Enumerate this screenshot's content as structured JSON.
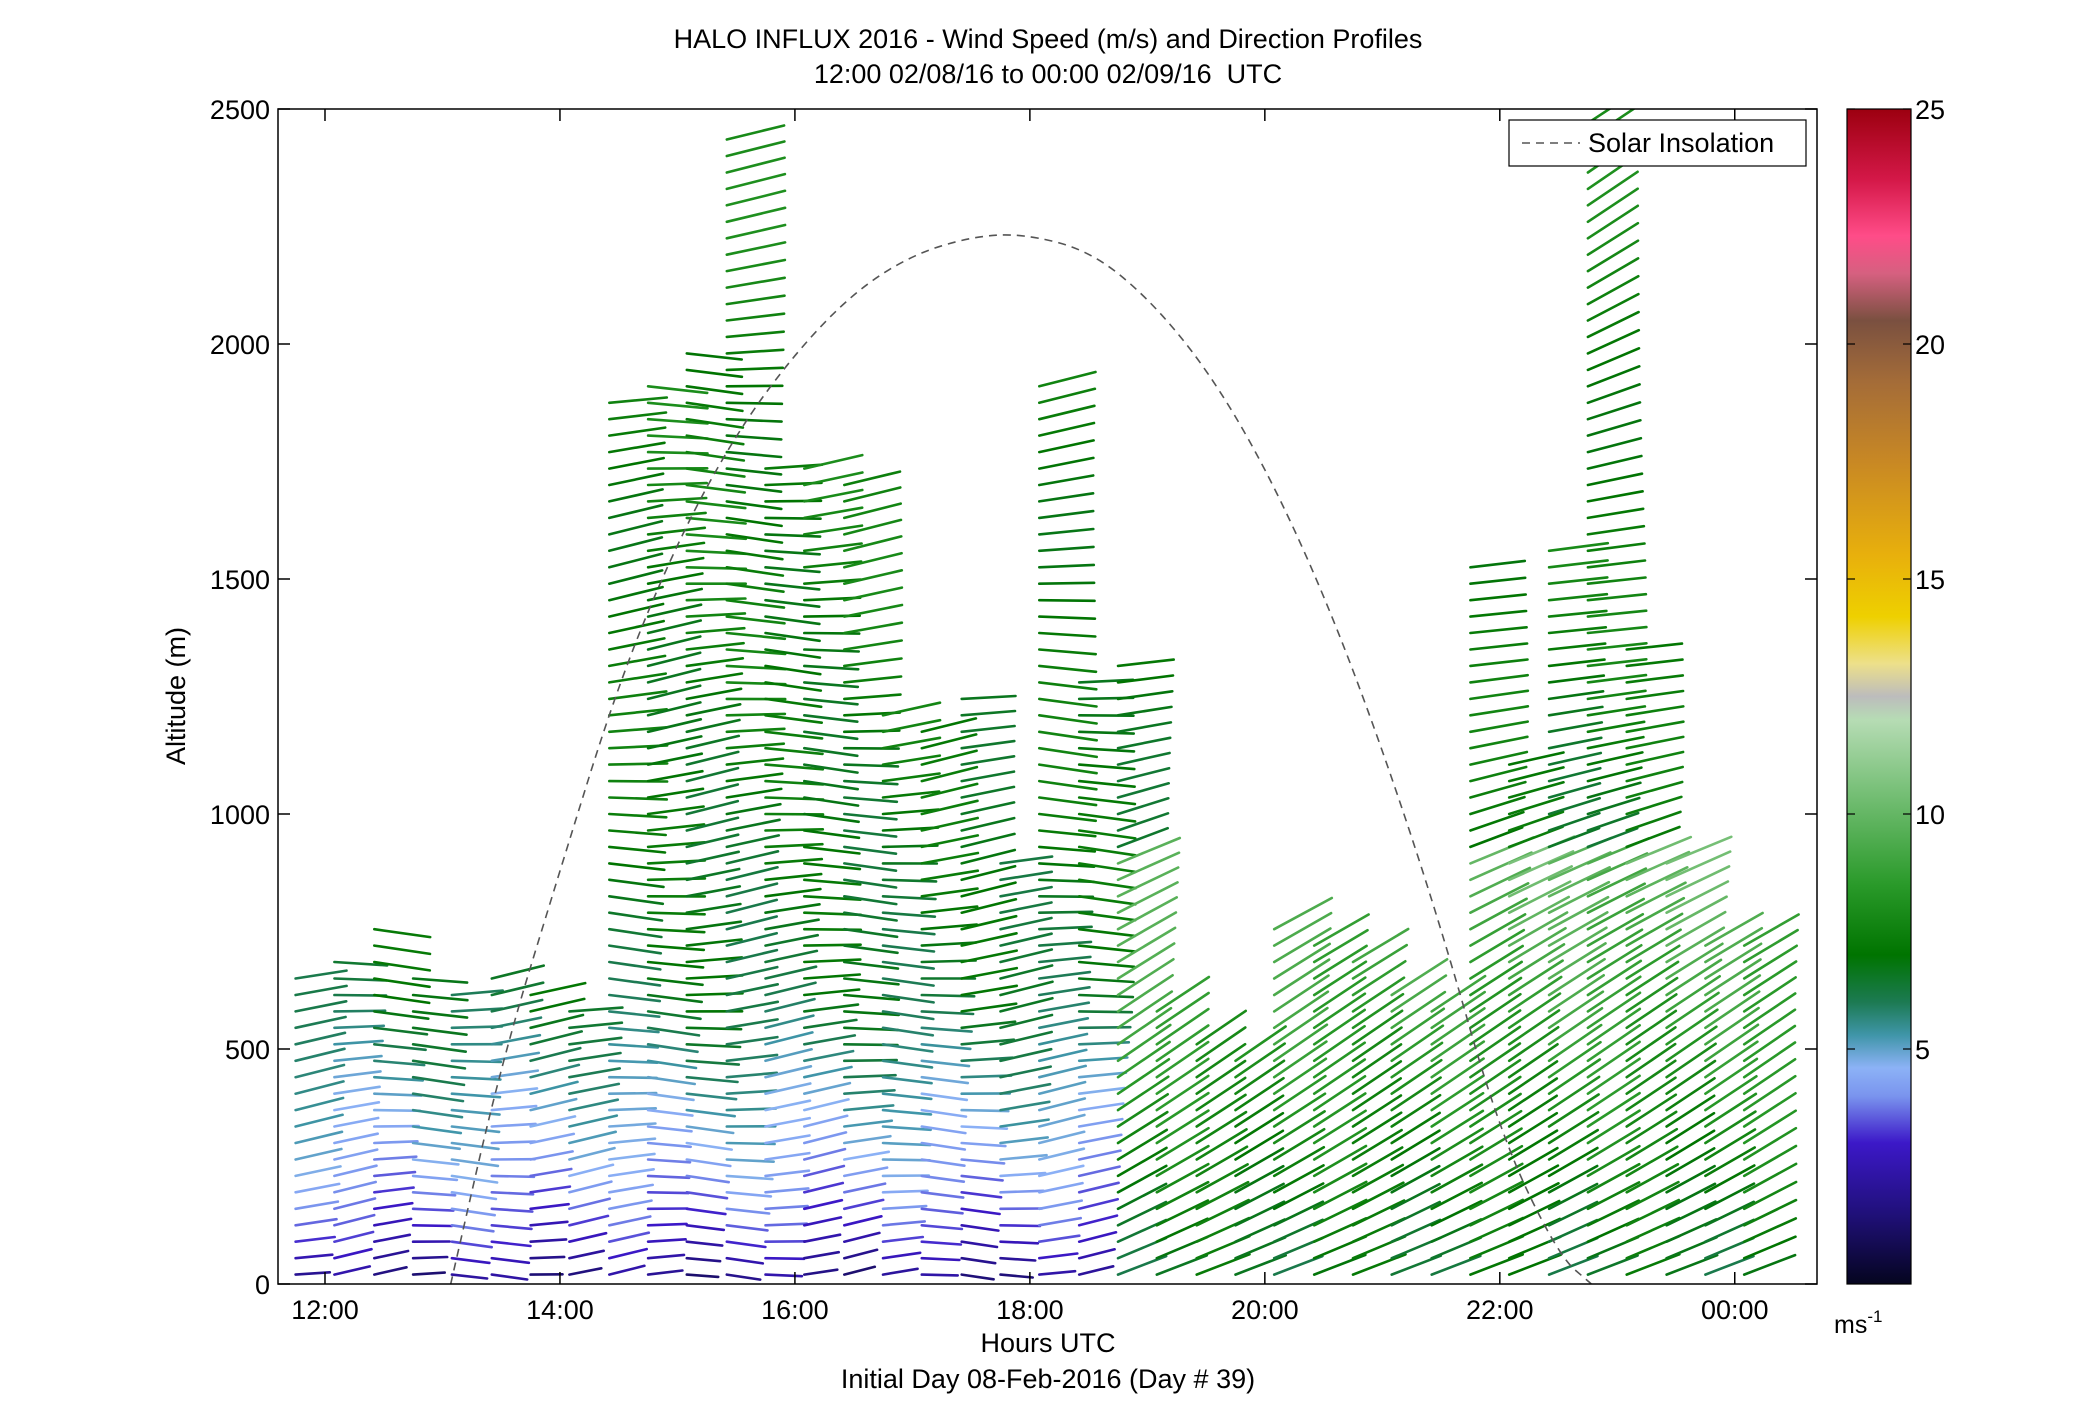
{
  "chart_data": {
    "type": "scatter",
    "title": "HALO INFLUX 2016 - Wind Speed (m/s) and Direction Profiles",
    "subtitle": "12:00 02/08/16 to 00:00 02/09/16  UTC",
    "xlabel": "Hours UTC",
    "x_sublabel": "Initial Day 08-Feb-2016 (Day # 39)",
    "ylabel": "Altitude (m)",
    "xlim": [
      11.6,
      24.7
    ],
    "ylim": [
      0,
      2500
    ],
    "x_ticks": [
      12,
      14,
      16,
      18,
      20,
      22,
      24
    ],
    "x_tick_labels": [
      "12:00",
      "14:00",
      "16:00",
      "18:00",
      "20:00",
      "22:00",
      "00:00"
    ],
    "y_ticks": [
      0,
      500,
      1000,
      1500,
      2000,
      2500
    ],
    "y_tick_labels": [
      "0",
      "500",
      "1000",
      "1500",
      "2000",
      "2500"
    ],
    "grid": false,
    "legend": {
      "position": "top-right",
      "entries": [
        "Solar Insolation"
      ]
    },
    "colorbar": {
      "ticks": [
        5,
        10,
        15,
        20,
        25
      ],
      "tick_labels": [
        "5",
        "10",
        "15",
        "20",
        "25"
      ],
      "unit_label": "ms",
      "unit_exponent": "-1",
      "range": [
        0,
        25
      ],
      "stops": [
        {
          "v": 0,
          "c": "#05051f"
        },
        {
          "v": 1.5,
          "c": "#20107a"
        },
        {
          "v": 3,
          "c": "#3c18c8"
        },
        {
          "v": 4,
          "c": "#7a94ee"
        },
        {
          "v": 4.6,
          "c": "#8cb2f6"
        },
        {
          "v": 5.3,
          "c": "#3f95a8"
        },
        {
          "v": 6,
          "c": "#1c7a52"
        },
        {
          "v": 7,
          "c": "#007400"
        },
        {
          "v": 8.5,
          "c": "#2a9a2a"
        },
        {
          "v": 10.5,
          "c": "#78c078"
        },
        {
          "v": 12,
          "c": "#b6dcb4"
        },
        {
          "v": 12.5,
          "c": "#bcbcbc"
        },
        {
          "v": 13.2,
          "c": "#ede08a"
        },
        {
          "v": 14.2,
          "c": "#eed000"
        },
        {
          "v": 15.5,
          "c": "#e8b00c"
        },
        {
          "v": 17.5,
          "c": "#c88824"
        },
        {
          "v": 19.2,
          "c": "#a46c38"
        },
        {
          "v": 20.5,
          "c": "#7a5040"
        },
        {
          "v": 21.5,
          "c": "#d66080"
        },
        {
          "v": 22.3,
          "c": "#ff4c88"
        },
        {
          "v": 23.5,
          "c": "#d41848"
        },
        {
          "v": 25,
          "c": "#9c0010"
        }
      ]
    },
    "solar_insolation": {
      "style": "dashed",
      "color": "#555555",
      "x": [
        13.07,
        13.5,
        14,
        14.5,
        15,
        15.5,
        16,
        16.5,
        17,
        17.5,
        17.93,
        18.5,
        19,
        19.5,
        20,
        20.5,
        21,
        21.5,
        22,
        22.5,
        22.78
      ],
      "y": [
        0,
        470,
        880,
        1280,
        1580,
        1810,
        1980,
        2110,
        2190,
        2228,
        2235,
        2200,
        2100,
        1950,
        1740,
        1470,
        1140,
        760,
        320,
        60,
        0
      ]
    },
    "wind_profiles": {
      "profile_times": [
        11.75,
        12.08,
        12.42,
        12.75,
        13.08,
        13.42,
        13.75,
        14.08,
        14.42,
        14.75,
        15.08,
        15.42,
        15.75,
        16.08,
        16.42,
        16.75,
        17.08,
        17.42,
        17.75,
        18.08,
        18.42,
        18.75,
        19.08,
        19.42,
        19.75,
        20.08,
        20.42,
        20.75,
        21.08,
        21.42,
        21.75,
        22.08,
        22.42,
        22.75,
        23.08,
        23.42,
        23.75,
        24.08
      ],
      "top_altitudes": [
        680,
        685,
        755,
        650,
        625,
        655,
        615,
        585,
        1905,
        1920,
        2000,
        2450,
        1755,
        1745,
        1700,
        1210,
        1205,
        1245,
        915,
        1915,
        1290,
        1340,
        580,
        520,
        490,
        755,
        750,
        710,
        620,
        590,
        1535,
        1105,
        1565,
        2495,
        1370,
        925,
        720,
        720
      ],
      "min_altitude": 20,
      "level_spacing_m": 35,
      "speed_profile": [
        {
          "alt": 0,
          "speed": 1.6
        },
        {
          "alt": 100,
          "speed": 3.0
        },
        {
          "alt": 250,
          "speed": 4.3
        },
        {
          "alt": 400,
          "speed": 5.2
        },
        {
          "alt": 600,
          "speed": 6.5
        },
        {
          "alt": 900,
          "speed": 6.8
        },
        {
          "alt": 1300,
          "speed": 7.2
        },
        {
          "alt": 2000,
          "speed": 7.5
        }
      ],
      "direction_rotation_deg_per_km": 40
    }
  }
}
